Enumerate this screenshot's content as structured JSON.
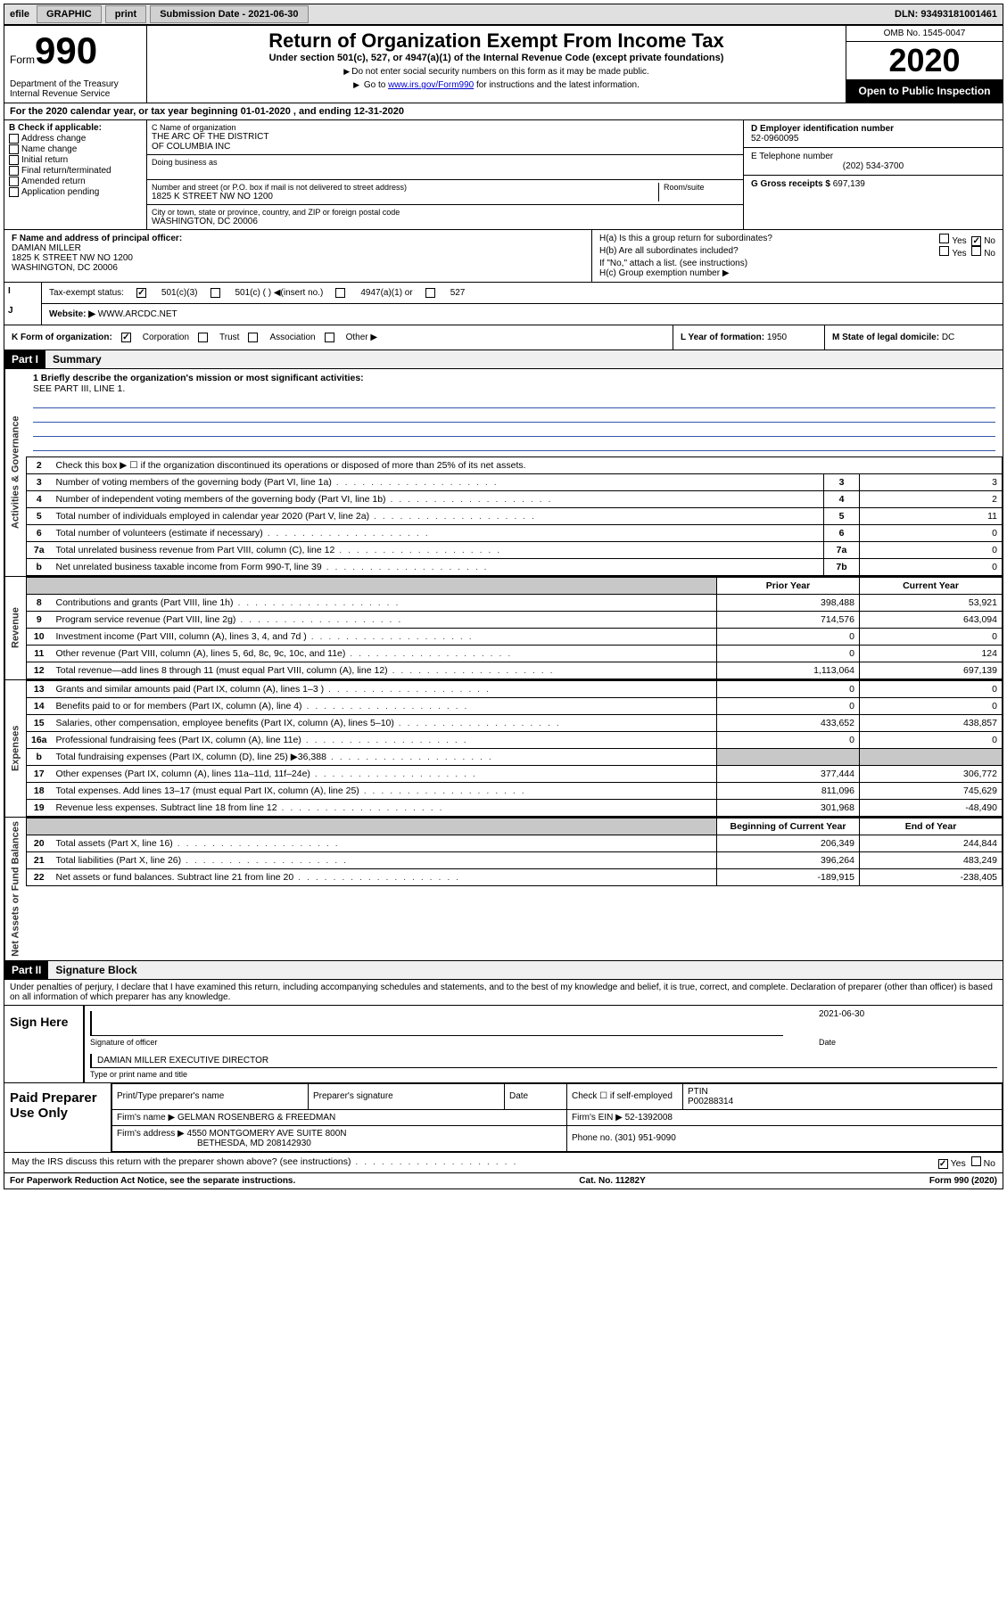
{
  "topbar": {
    "efile": "efile",
    "graphic": "GRAPHIC",
    "print": "print",
    "sub_label": "Submission Date - ",
    "sub_date": "2021-06-30",
    "dln_label": "DLN: ",
    "dln": "93493181001461"
  },
  "header": {
    "form_word": "Form",
    "form_num": "990",
    "dept": "Department of the Treasury",
    "irs": "Internal Revenue Service",
    "title": "Return of Organization Exempt From Income Tax",
    "subtitle": "Under section 501(c), 527, or 4947(a)(1) of the Internal Revenue Code (except private foundations)",
    "note1": "Do not enter social security numbers on this form as it may be made public.",
    "note2_pre": "Go to ",
    "note2_link": "www.irs.gov/Form990",
    "note2_post": " for instructions and the latest information.",
    "omb": "OMB No. 1545-0047",
    "year": "2020",
    "inspect": "Open to Public Inspection"
  },
  "lineA": "For the 2020 calendar year, or tax year beginning 01-01-2020    , and ending 12-31-2020",
  "colB": {
    "header": "B Check if applicable:",
    "items": [
      "Address change",
      "Name change",
      "Initial return",
      "Final return/terminated",
      "Amended return",
      "Application pending"
    ]
  },
  "colC": {
    "name_label": "C Name of organization",
    "name1": "THE ARC OF THE DISTRICT",
    "name2": "OF COLUMBIA INC",
    "dba_label": "Doing business as",
    "addr_label": "Number and street (or P.O. box if mail is not delivered to street address)",
    "room": "Room/suite",
    "addr": "1825 K STREET NW NO 1200",
    "city_label": "City or town, state or province, country, and ZIP or foreign postal code",
    "city": "WASHINGTON, DC  20006"
  },
  "colD": {
    "ein_label": "D Employer identification number",
    "ein": "52-0960095",
    "tel_label": "E Telephone number",
    "tel": "(202) 534-3700",
    "gross_label": "G Gross receipts $ ",
    "gross": "697,139"
  },
  "rowF": {
    "label": "F  Name and address of principal officer:",
    "name": "DAMIAN MILLER",
    "addr1": "1825 K STREET NW NO 1200",
    "addr2": "WASHINGTON, DC  20006"
  },
  "rowH": {
    "ha": "H(a)  Is this a group return for subordinates?",
    "hb": "H(b)  Are all subordinates included?",
    "hb_note": "If \"No,\" attach a list. (see instructions)",
    "hc": "H(c)  Group exemption number ▶",
    "yes": "Yes",
    "no": "No"
  },
  "rowI": {
    "label": "Tax-exempt status:",
    "opt1": "501(c)(3)",
    "opt2": "501(c) (  ) ◀(insert no.)",
    "opt3": "4947(a)(1) or",
    "opt4": "527"
  },
  "rowJ": {
    "label": "Website: ▶",
    "val": "WWW.ARCDC.NET"
  },
  "rowK": {
    "label": "K Form of organization:",
    "opts": [
      "Corporation",
      "Trust",
      "Association",
      "Other ▶"
    ]
  },
  "rowL": {
    "label": "L Year of formation: ",
    "val": "1950"
  },
  "rowM": {
    "label": "M State of legal domicile: ",
    "val": "DC"
  },
  "part1": {
    "title": "Part I",
    "name": "Summary"
  },
  "side_labels": {
    "gov": "Activities & Governance",
    "rev": "Revenue",
    "exp": "Expenses",
    "net": "Net Assets or Fund Balances"
  },
  "q1": {
    "text": "1  Briefly describe the organization's mission or most significant activities:",
    "ans": "SEE PART III, LINE 1."
  },
  "gov_lines": [
    {
      "n": "2",
      "text": "Check this box ▶ ☐  if the organization discontinued its operations or disposed of more than 25% of its net assets.",
      "box": "",
      "val": ""
    },
    {
      "n": "3",
      "text": "Number of voting members of the governing body (Part VI, line 1a)",
      "box": "3",
      "val": "3"
    },
    {
      "n": "4",
      "text": "Number of independent voting members of the governing body (Part VI, line 1b)",
      "box": "4",
      "val": "2"
    },
    {
      "n": "5",
      "text": "Total number of individuals employed in calendar year 2020 (Part V, line 2a)",
      "box": "5",
      "val": "11"
    },
    {
      "n": "6",
      "text": "Total number of volunteers (estimate if necessary)",
      "box": "6",
      "val": "0"
    },
    {
      "n": "7a",
      "text": "Total unrelated business revenue from Part VIII, column (C), line 12",
      "box": "7a",
      "val": "0"
    },
    {
      "n": "b",
      "text": "Net unrelated business taxable income from Form 990-T, line 39",
      "box": "7b",
      "val": "0"
    }
  ],
  "col_headers": {
    "prior": "Prior Year",
    "current": "Current Year",
    "boc": "Beginning of Current Year",
    "eoy": "End of Year"
  },
  "rev_lines": [
    {
      "n": "8",
      "text": "Contributions and grants (Part VIII, line 1h)",
      "p": "398,488",
      "c": "53,921"
    },
    {
      "n": "9",
      "text": "Program service revenue (Part VIII, line 2g)",
      "p": "714,576",
      "c": "643,094"
    },
    {
      "n": "10",
      "text": "Investment income (Part VIII, column (A), lines 3, 4, and 7d )",
      "p": "0",
      "c": "0"
    },
    {
      "n": "11",
      "text": "Other revenue (Part VIII, column (A), lines 5, 6d, 8c, 9c, 10c, and 11e)",
      "p": "0",
      "c": "124"
    },
    {
      "n": "12",
      "text": "Total revenue—add lines 8 through 11 (must equal Part VIII, column (A), line 12)",
      "p": "1,113,064",
      "c": "697,139"
    }
  ],
  "exp_lines": [
    {
      "n": "13",
      "text": "Grants and similar amounts paid (Part IX, column (A), lines 1–3 )",
      "p": "0",
      "c": "0"
    },
    {
      "n": "14",
      "text": "Benefits paid to or for members (Part IX, column (A), line 4)",
      "p": "0",
      "c": "0"
    },
    {
      "n": "15",
      "text": "Salaries, other compensation, employee benefits (Part IX, column (A), lines 5–10)",
      "p": "433,652",
      "c": "438,857"
    },
    {
      "n": "16a",
      "text": "Professional fundraising fees (Part IX, column (A), line 11e)",
      "p": "0",
      "c": "0"
    },
    {
      "n": "b",
      "text": "Total fundraising expenses (Part IX, column (D), line 25) ▶36,388",
      "p": "",
      "c": "",
      "shaded": true
    },
    {
      "n": "17",
      "text": "Other expenses (Part IX, column (A), lines 11a–11d, 11f–24e)",
      "p": "377,444",
      "c": "306,772"
    },
    {
      "n": "18",
      "text": "Total expenses. Add lines 13–17 (must equal Part IX, column (A), line 25)",
      "p": "811,096",
      "c": "745,629"
    },
    {
      "n": "19",
      "text": "Revenue less expenses. Subtract line 18 from line 12",
      "p": "301,968",
      "c": "-48,490"
    }
  ],
  "net_lines": [
    {
      "n": "20",
      "text": "Total assets (Part X, line 16)",
      "p": "206,349",
      "c": "244,844"
    },
    {
      "n": "21",
      "text": "Total liabilities (Part X, line 26)",
      "p": "396,264",
      "c": "483,249"
    },
    {
      "n": "22",
      "text": "Net assets or fund balances. Subtract line 21 from line 20",
      "p": "-189,915",
      "c": "-238,405"
    }
  ],
  "part2": {
    "title": "Part II",
    "name": "Signature Block"
  },
  "penalties": "Under penalties of perjury, I declare that I have examined this return, including accompanying schedules and statements, and to the best of my knowledge and belief, it is true, correct, and complete. Declaration of preparer (other than officer) is based on all information of which preparer has any knowledge.",
  "sign": {
    "here": "Sign Here",
    "sig_of_officer": "Signature of officer",
    "date_label": "Date",
    "date": "2021-06-30",
    "name": "DAMIAN MILLER  EXECUTIVE DIRECTOR",
    "type_label": "Type or print name and title"
  },
  "prep": {
    "label": "Paid Preparer Use Only",
    "print_name": "Print/Type preparer's name",
    "sig": "Preparer's signature",
    "date": "Date",
    "check_self": "Check ☐ if self-employed",
    "ptin_label": "PTIN",
    "ptin": "P00288314",
    "firm_name_label": "Firm's name    ▶",
    "firm_name": "GELMAN ROSENBERG & FREEDMAN",
    "firm_ein_label": "Firm's EIN ▶",
    "firm_ein": "52-1392008",
    "firm_addr_label": "Firm's address ▶",
    "firm_addr1": "4550 MONTGOMERY AVE SUITE 800N",
    "firm_addr2": "BETHESDA, MD  208142930",
    "phone_label": "Phone no. ",
    "phone": "(301) 951-9090"
  },
  "discuss": "May the IRS discuss this return with the preparer shown above? (see instructions)",
  "footer": {
    "paperwork": "For Paperwork Reduction Act Notice, see the separate instructions.",
    "cat": "Cat. No. 11282Y",
    "form": "Form 990 (2020)"
  }
}
